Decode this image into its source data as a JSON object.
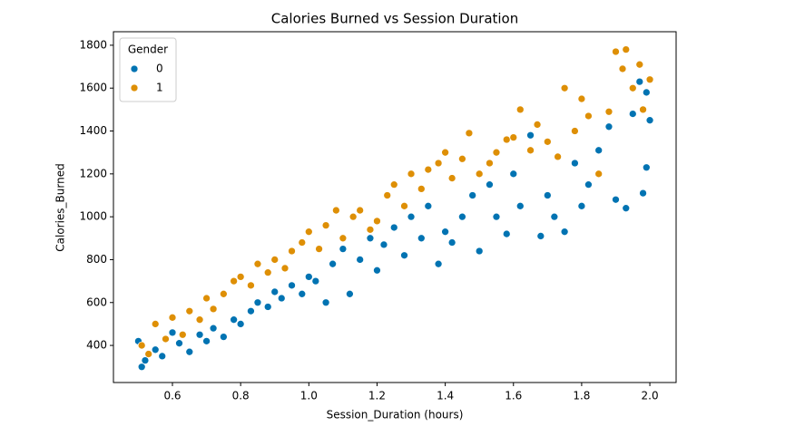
{
  "chart_data": {
    "type": "scatter",
    "title": "Calories Burned vs Session Duration",
    "x_label": "Session_Duration (hours)",
    "y_label": "Calories_Burned",
    "legend_title": "Gender",
    "legend_position": "upper-left",
    "xlim": [
      0.427,
      2.077
    ],
    "ylim": [
      227,
      1863
    ],
    "xticks": [
      0.6,
      0.8,
      {
        "value": 1,
        "label": "1.0"
      },
      1.2,
      1.4,
      1.6,
      1.8,
      {
        "value": 2,
        "label": "2.0"
      }
    ],
    "yticks": [
      400,
      600,
      800,
      1000,
      1200,
      1400,
      1600,
      1800
    ],
    "series": [
      {
        "name": "0",
        "color": "#0173b2",
        "x": [
          0.5,
          0.51,
          0.52,
          0.55,
          0.57,
          0.6,
          0.62,
          0.65,
          0.68,
          0.7,
          0.72,
          0.75,
          0.78,
          0.8,
          0.83,
          0.85,
          0.88,
          0.9,
          0.92,
          0.95,
          0.98,
          1.0,
          1.02,
          1.05,
          1.07,
          1.1,
          1.12,
          1.15,
          1.18,
          1.2,
          1.22,
          1.25,
          1.28,
          1.3,
          1.33,
          1.35,
          1.38,
          1.4,
          1.42,
          1.45,
          1.48,
          1.5,
          1.53,
          1.55,
          1.58,
          1.6,
          1.62,
          1.65,
          1.68,
          1.7,
          1.72,
          1.75,
          1.78,
          1.8,
          1.82,
          1.85,
          1.88,
          1.9,
          1.93,
          1.95,
          1.97,
          1.98,
          1.99,
          2.0,
          1.99
        ],
        "values": [
          420,
          300,
          330,
          380,
          350,
          460,
          410,
          370,
          450,
          420,
          480,
          440,
          520,
          500,
          560,
          600,
          580,
          650,
          620,
          680,
          640,
          720,
          700,
          600,
          780,
          850,
          640,
          800,
          900,
          750,
          870,
          950,
          820,
          1000,
          900,
          1050,
          780,
          930,
          880,
          1000,
          1100,
          840,
          1150,
          1000,
          920,
          1200,
          1050,
          1380,
          910,
          1100,
          1000,
          930,
          1250,
          1050,
          1150,
          1310,
          1420,
          1080,
          1040,
          1480,
          1630,
          1110,
          1580,
          1450,
          1230
        ]
      },
      {
        "name": "1",
        "color": "#de8f05",
        "x": [
          0.51,
          0.53,
          0.55,
          0.58,
          0.6,
          0.63,
          0.65,
          0.68,
          0.7,
          0.72,
          0.75,
          0.78,
          0.8,
          0.83,
          0.85,
          0.88,
          0.9,
          0.93,
          0.95,
          0.98,
          1.0,
          1.03,
          1.05,
          1.08,
          1.1,
          1.13,
          1.15,
          1.18,
          1.2,
          1.23,
          1.25,
          1.28,
          1.3,
          1.33,
          1.35,
          1.38,
          1.4,
          1.42,
          1.45,
          1.47,
          1.5,
          1.53,
          1.55,
          1.58,
          1.6,
          1.62,
          1.65,
          1.67,
          1.7,
          1.73,
          1.75,
          1.78,
          1.8,
          1.82,
          1.85,
          1.88,
          1.9,
          1.92,
          1.93,
          1.95,
          1.97,
          1.98,
          2.0
        ],
        "values": [
          400,
          360,
          500,
          430,
          530,
          450,
          560,
          520,
          620,
          570,
          640,
          700,
          720,
          680,
          780,
          740,
          800,
          760,
          840,
          880,
          930,
          850,
          960,
          1030,
          900,
          1000,
          1030,
          940,
          980,
          1100,
          1150,
          1050,
          1200,
          1130,
          1220,
          1250,
          1300,
          1180,
          1270,
          1390,
          1200,
          1250,
          1300,
          1360,
          1370,
          1500,
          1310,
          1430,
          1350,
          1280,
          1600,
          1400,
          1550,
          1470,
          1200,
          1490,
          1770,
          1690,
          1780,
          1600,
          1710,
          1500,
          1640
        ]
      }
    ]
  }
}
